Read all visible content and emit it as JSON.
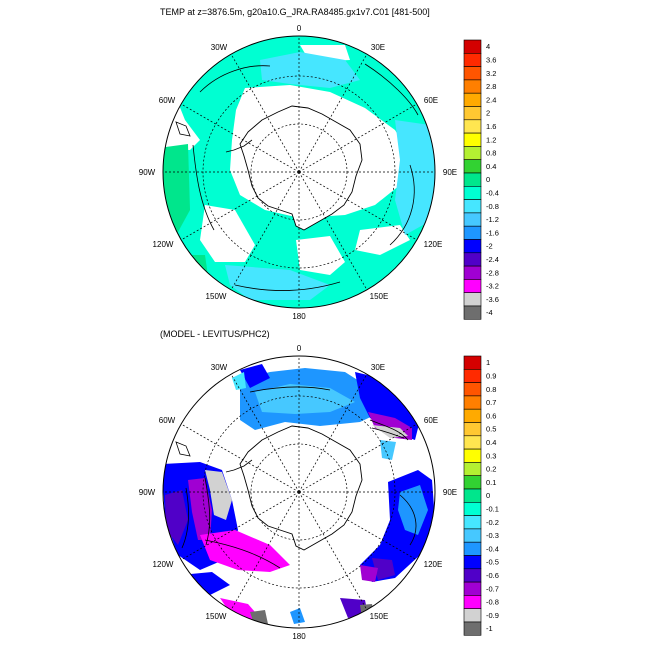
{
  "top_title": "TEMP at z=3876.5m, g20a10.G_JRA.RA8485.gx1v7.C01 [481-500]",
  "bottom_title": "(MODEL - LEVITUS/PHC2)",
  "longitude_labels": [
    "0",
    "30E",
    "60E",
    "90E",
    "120E",
    "150E",
    "180",
    "150W",
    "120W",
    "90W",
    "60W",
    "30W"
  ],
  "top_colorbar": {
    "labels": [
      "4",
      "3.6",
      "3.2",
      "2.8",
      "2.4",
      "2",
      "1.6",
      "1.2",
      "0.8",
      "0.4",
      "0",
      "-0.4",
      "-0.8",
      "-1.2",
      "-1.6",
      "-2",
      "-2.4",
      "-2.8",
      "-3.2",
      "-3.6",
      "-4"
    ],
    "colors": [
      "#d40000",
      "#ff2a00",
      "#ff5500",
      "#ff7f00",
      "#ffaa00",
      "#ffc832",
      "#ffe650",
      "#ffff00",
      "#b4f032",
      "#32d232",
      "#00e68c",
      "#00ffd2",
      "#46e6ff",
      "#46c8ff",
      "#1e96ff",
      "#0000ff",
      "#5000c8",
      "#a000d2",
      "#ff00ff",
      "#d2d2d2",
      "#6e6e6e"
    ]
  },
  "bottom_colorbar": {
    "labels": [
      "1",
      "0.9",
      "0.8",
      "0.7",
      "0.6",
      "0.5",
      "0.4",
      "0.3",
      "0.2",
      "0.1",
      "0",
      "-0.1",
      "-0.2",
      "-0.3",
      "-0.4",
      "-0.5",
      "-0.6",
      "-0.7",
      "-0.8",
      "-0.9",
      "-1"
    ],
    "colors": [
      "#d40000",
      "#ff2a00",
      "#ff5500",
      "#ff7f00",
      "#ffaa00",
      "#ffc832",
      "#ffe650",
      "#ffff00",
      "#b4f032",
      "#32d232",
      "#00e68c",
      "#00ffd2",
      "#46e6ff",
      "#46c8ff",
      "#1e96ff",
      "#0000ff",
      "#5000c8",
      "#a000d2",
      "#ff00ff",
      "#d2d2d2",
      "#6e6e6e"
    ]
  }
}
